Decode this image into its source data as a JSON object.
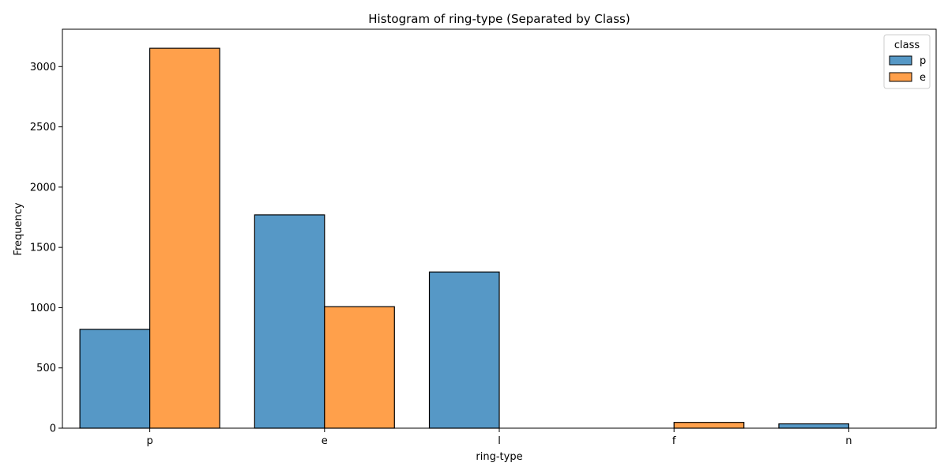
{
  "chart_data": {
    "type": "bar",
    "title": "Histogram of ring-type (Separated by Class)",
    "xlabel": "ring-type",
    "ylabel": "Frequency",
    "categories": [
      "p",
      "e",
      "l",
      "f",
      "n"
    ],
    "series": [
      {
        "name": "p",
        "color": "#5698c6",
        "values": [
          820,
          1770,
          1296,
          0,
          36
        ]
      },
      {
        "name": "e",
        "color": "#ffa04b",
        "values": [
          3152,
          1008,
          0,
          48,
          0
        ]
      }
    ],
    "ylim": [
      0,
      3310
    ],
    "yticks": [
      0,
      500,
      1000,
      1500,
      2000,
      2500,
      3000
    ],
    "legend": {
      "title": "class",
      "placement": "top-right"
    },
    "grid": false
  }
}
